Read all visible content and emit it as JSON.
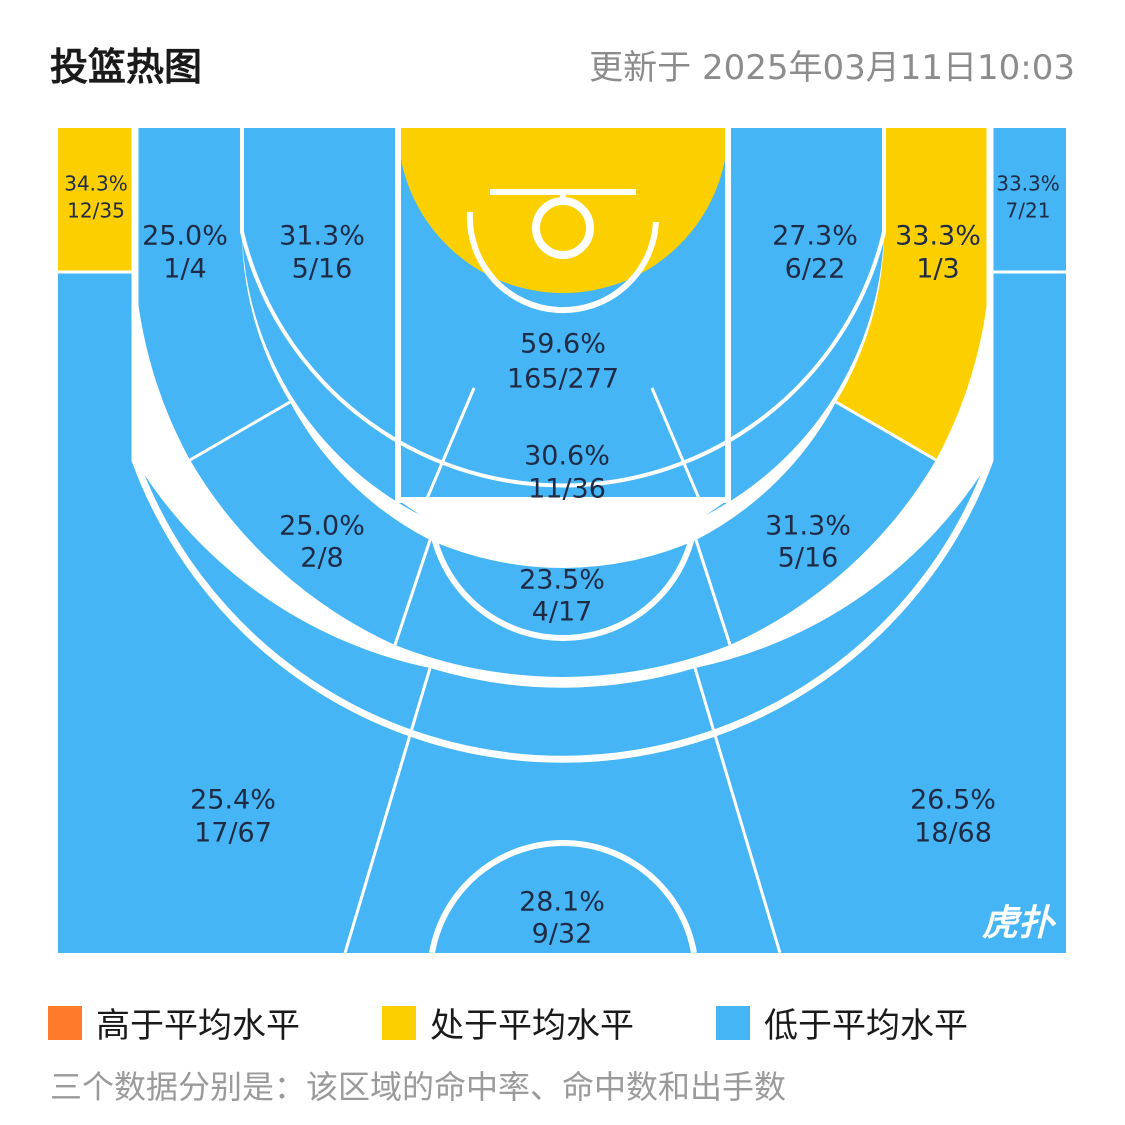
{
  "header": {
    "title": "投篮热图",
    "updated": "更新于 2025年03月11日10:03"
  },
  "colors": {
    "above": "#ff7a2a",
    "average": "#fcd000",
    "below": "#46b5f5",
    "court_line": "#ffffff"
  },
  "chart_data": {
    "type": "heatmap",
    "zones": [
      {
        "id": "left-corner-three",
        "pct": "34.3%",
        "made_att": "12/35",
        "level": "average"
      },
      {
        "id": "right-corner-three",
        "pct": "33.3%",
        "made_att": "7/21",
        "level": "below"
      },
      {
        "id": "left-baseline-long-two",
        "pct": "25.0%",
        "made_att": "1/4",
        "level": "below"
      },
      {
        "id": "left-short-midrange",
        "pct": "31.3%",
        "made_att": "5/16",
        "level": "below"
      },
      {
        "id": "restricted-area",
        "pct": "59.6%",
        "made_att": "165/277",
        "level": "average"
      },
      {
        "id": "right-short-midrange",
        "pct": "27.3%",
        "made_att": "6/22",
        "level": "below"
      },
      {
        "id": "right-baseline-long-two",
        "pct": "33.3%",
        "made_att": "1/3",
        "level": "average"
      },
      {
        "id": "paint-non-ra",
        "pct": "30.6%",
        "made_att": "11/36",
        "level": "below"
      },
      {
        "id": "left-elbow-midrange",
        "pct": "25.0%",
        "made_att": "2/8",
        "level": "below"
      },
      {
        "id": "right-elbow-midrange",
        "pct": "31.3%",
        "made_att": "5/16",
        "level": "below"
      },
      {
        "id": "top-key-midrange",
        "pct": "23.5%",
        "made_att": "4/17",
        "level": "below"
      },
      {
        "id": "left-wing-three",
        "pct": "25.4%",
        "made_att": "17/67",
        "level": "below"
      },
      {
        "id": "right-wing-three",
        "pct": "26.5%",
        "made_att": "18/68",
        "level": "below"
      },
      {
        "id": "top-key-three",
        "pct": "28.1%",
        "made_att": "9/32",
        "level": "below"
      }
    ]
  },
  "legend": {
    "above_label": "高于平均水平",
    "average_label": "处于平均水平",
    "below_label": "低于平均水平"
  },
  "note": "三个数据分别是：该区域的命中率、命中数和出手数",
  "watermark": "虎扑"
}
